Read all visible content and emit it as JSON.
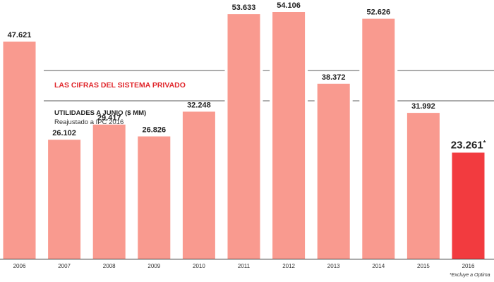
{
  "chart_data": {
    "type": "bar",
    "title": "LAS CIFRAS DEL SISTEMA PRIVADO",
    "subtitle": "UTILIDADES A JUNIO ($ MM)",
    "subtitle2": "Reajustado a IPC 2016",
    "categories": [
      "2006",
      "2007",
      "2008",
      "2009",
      "2010",
      "2011",
      "2012",
      "2013",
      "2014",
      "2015",
      "2016"
    ],
    "values": [
      47621,
      26102,
      29417,
      26826,
      32248,
      53633,
      54106,
      38372,
      52626,
      31992,
      23261
    ],
    "value_labels": [
      "47.621",
      "26.102",
      "29.417",
      "26.826",
      "32.248",
      "53.633",
      "54.106",
      "38.372",
      "52.626",
      "31.992",
      "23.261"
    ],
    "highlight_index": 10,
    "highlight_marker": "*",
    "footnote": "*Excluye a Optima",
    "colors": {
      "bar": "#f99a8f",
      "highlight": "#f23b3f",
      "title": "#e0262b",
      "rule": "#7a7a7a",
      "baseline": "#333333"
    },
    "grid": false,
    "legend": "none"
  }
}
